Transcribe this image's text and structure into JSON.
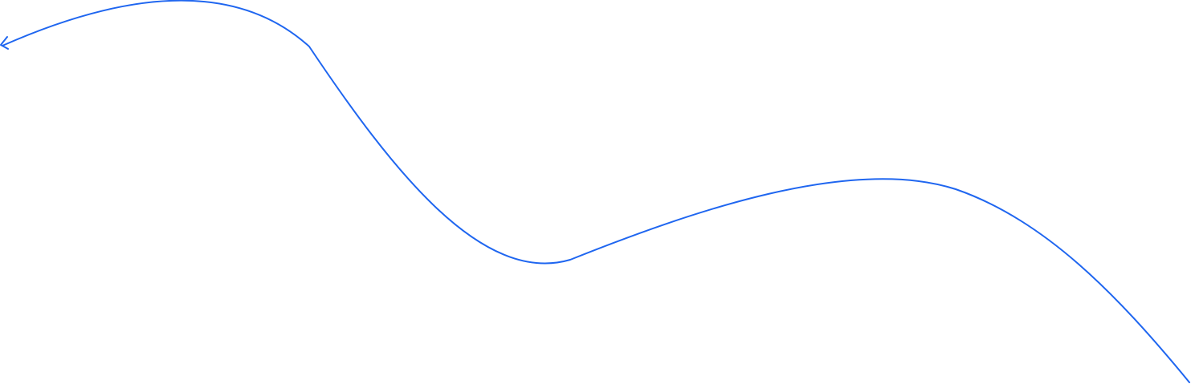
{
  "connector": {
    "color": "#1f66f0",
    "style": "curved",
    "start_marker": "open-arrow",
    "end_marker": "none"
  }
}
